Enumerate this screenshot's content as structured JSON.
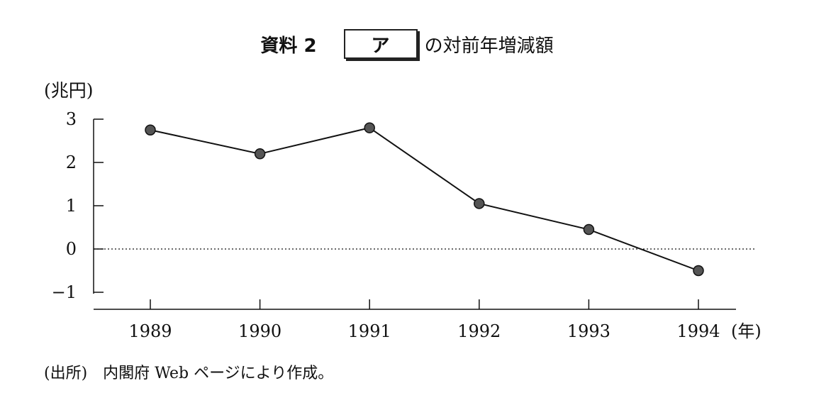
{
  "title": {
    "prefix": "資料 2",
    "box_label": "ア",
    "suffix": "の対前年増減額"
  },
  "unit_label": "(兆円)",
  "source_note": "(出所)　内閣府 Web ページにより作成。",
  "chart_data": {
    "type": "line",
    "title": "資料 2　ア　の対前年増減額",
    "ylabel": "(兆円)",
    "xlabel": "(年)",
    "categories": [
      "1989",
      "1990",
      "1991",
      "1992",
      "1993",
      "1994"
    ],
    "values": [
      2.75,
      2.2,
      2.8,
      1.05,
      0.45,
      -0.5
    ],
    "ylim": [
      -1.4,
      3
    ],
    "yticks": [
      -1,
      0,
      1,
      2,
      3
    ],
    "ytick_labels": [
      "−1",
      "0",
      "1",
      "2",
      "3"
    ],
    "reference_line": {
      "y": 0,
      "style": "dotted"
    },
    "grid": false,
    "line_color": "#111111",
    "marker_color": "#555555"
  }
}
